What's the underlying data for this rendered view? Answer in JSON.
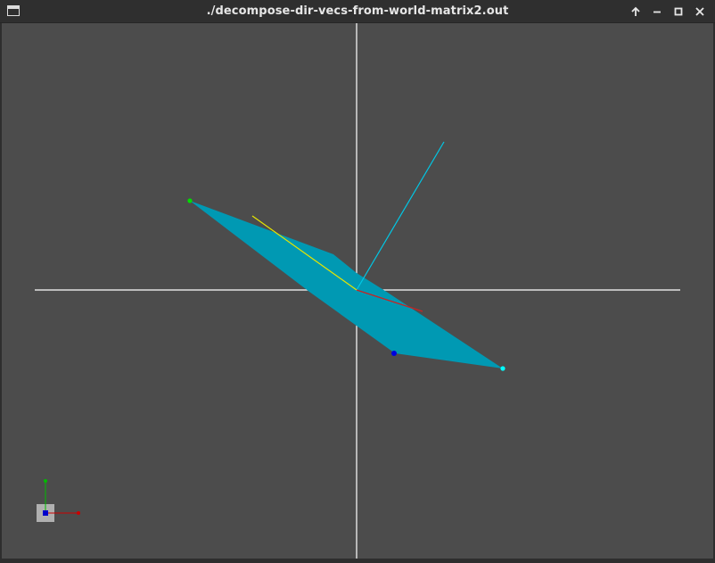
{
  "window": {
    "title": "./decompose-dir-vecs-from-world-matrix2.out",
    "icon": "window-menu-icon",
    "controls": [
      {
        "name": "keep-above-icon",
        "label": "Keep above"
      },
      {
        "name": "minimize-icon",
        "label": "Minimize"
      },
      {
        "name": "maximize-icon",
        "label": "Maximize"
      },
      {
        "name": "close-icon",
        "label": "Close"
      }
    ]
  },
  "scene": {
    "background_color": "#4c4c4c",
    "plane_color": "#0099b3",
    "axis_line_color": "#ffffff",
    "vectors": [
      {
        "name": "forward-vector",
        "color": "#00c8e6"
      },
      {
        "name": "up-vector",
        "color": "#e6e600"
      },
      {
        "name": "right-vector",
        "color": "#cc2222"
      }
    ],
    "corner_markers": [
      {
        "name": "green-corner-marker",
        "color": "#00dd00"
      },
      {
        "name": "blue-corner-marker",
        "color": "#0000dd"
      },
      {
        "name": "cyan-corner-marker",
        "color": "#00ffff"
      }
    ],
    "gizmo": {
      "x_color": "#cc0000",
      "y_color": "#00bb00",
      "z_color": "#0000cc",
      "base_color": "#b0b0b0"
    }
  }
}
